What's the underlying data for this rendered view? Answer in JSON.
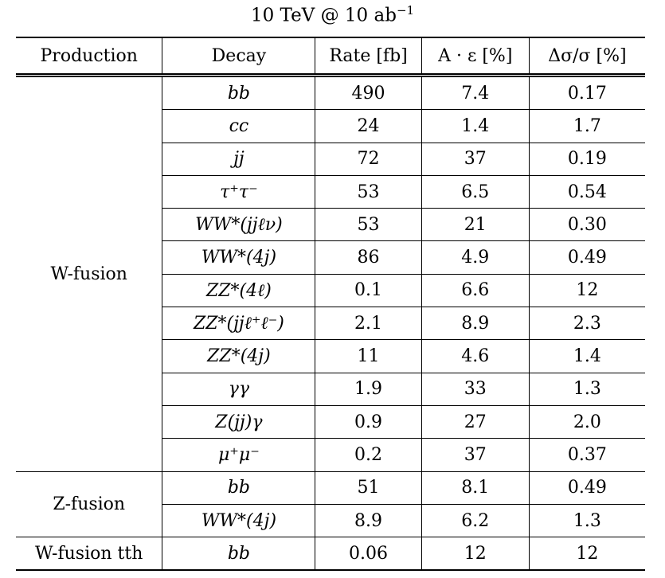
{
  "caption": {
    "text": "10 TeV @ 10 ab",
    "exponent": "−1"
  },
  "table": {
    "headers": [
      "Production",
      "Decay",
      "Rate [fb]",
      "A · ε [%]",
      "Δσ/σ [%]"
    ],
    "groups": [
      {
        "production": "W-fusion",
        "rows": [
          {
            "decay": "bb",
            "rate": "490",
            "acc": "7.4",
            "sigma": "0.17"
          },
          {
            "decay": "cc",
            "rate": "24",
            "acc": "1.4",
            "sigma": "1.7"
          },
          {
            "decay": "jj",
            "rate": "72",
            "acc": "37",
            "sigma": "0.19"
          },
          {
            "decay": "τ⁺τ⁻",
            "rate": "53",
            "acc": "6.5",
            "sigma": "0.54"
          },
          {
            "decay": "WW*(jjℓν)",
            "rate": "53",
            "acc": "21",
            "sigma": "0.30"
          },
          {
            "decay": "WW*(4j)",
            "rate": "86",
            "acc": "4.9",
            "sigma": "0.49"
          },
          {
            "decay": "ZZ*(4ℓ)",
            "rate": "0.1",
            "acc": "6.6",
            "sigma": "12"
          },
          {
            "decay": "ZZ*(jjℓ⁺ℓ⁻)",
            "rate": "2.1",
            "acc": "8.9",
            "sigma": "2.3"
          },
          {
            "decay": "ZZ*(4j)",
            "rate": "11",
            "acc": "4.6",
            "sigma": "1.4"
          },
          {
            "decay": "γγ",
            "rate": "1.9",
            "acc": "33",
            "sigma": "1.3"
          },
          {
            "decay": "Z(jj)γ",
            "rate": "0.9",
            "acc": "27",
            "sigma": "2.0"
          },
          {
            "decay": "μ⁺μ⁻",
            "rate": "0.2",
            "acc": "37",
            "sigma": "0.37"
          }
        ]
      },
      {
        "production": "Z-fusion",
        "rows": [
          {
            "decay": "bb",
            "rate": "51",
            "acc": "8.1",
            "sigma": "0.49"
          },
          {
            "decay": "WW*(4j)",
            "rate": "8.9",
            "acc": "6.2",
            "sigma": "1.3"
          }
        ]
      },
      {
        "production": "W-fusion tth",
        "rows": [
          {
            "decay": "bb",
            "rate": "0.06",
            "acc": "12",
            "sigma": "12"
          }
        ]
      }
    ]
  }
}
